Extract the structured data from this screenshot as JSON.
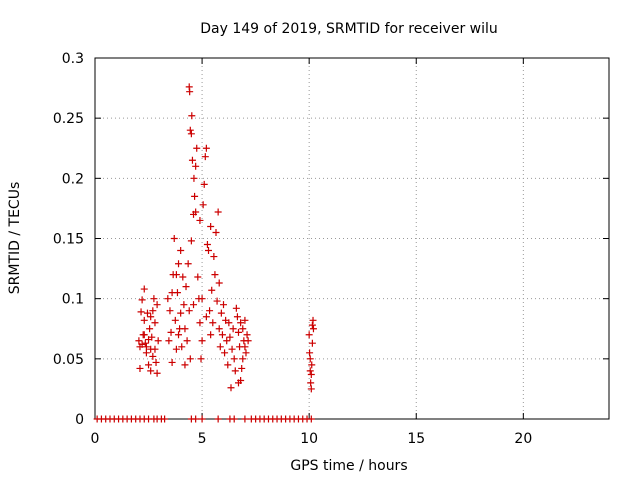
{
  "chart_data": {
    "type": "scatter",
    "title": "Day 149 of 2019, SRMTID for receiver wilu",
    "xlabel": "GPS time / hours",
    "ylabel": "SRMTID / TECUs",
    "xlim": [
      0,
      24
    ],
    "ylim": [
      0,
      0.3
    ],
    "xticks": [
      0,
      5,
      10,
      15,
      20
    ],
    "yticks": [
      0,
      0.05,
      0.1,
      0.15,
      0.2,
      0.25,
      0.3
    ],
    "grid": true,
    "legend": "none",
    "marker": "+",
    "marker_color": "#cc0000",
    "grid_color": "#999999",
    "series": [
      {
        "name": "SRMTID",
        "points": [
          [
            2.05,
            0.065
          ],
          [
            2.1,
            0.06
          ],
          [
            2.15,
            0.089
          ],
          [
            2.2,
            0.062
          ],
          [
            2.25,
            0.07
          ],
          [
            2.3,
            0.108
          ],
          [
            2.35,
            0.063
          ],
          [
            2.4,
            0.055
          ],
          [
            2.45,
            0.088
          ],
          [
            2.5,
            0.045
          ],
          [
            2.55,
            0.075
          ],
          [
            2.6,
            0.04
          ],
          [
            2.65,
            0.068
          ],
          [
            2.7,
            0.09
          ],
          [
            2.75,
            0.1
          ],
          [
            2.8,
            0.058
          ],
          [
            2.85,
            0.047
          ],
          [
            2.9,
            0.095
          ],
          [
            2.95,
            0.065
          ],
          [
            2.1,
            0.042
          ],
          [
            2.2,
            0.099
          ],
          [
            2.3,
            0.082
          ],
          [
            2.4,
            0.06
          ],
          [
            2.5,
            0.066
          ],
          [
            2.6,
            0.085
          ],
          [
            2.7,
            0.052
          ],
          [
            2.8,
            0.08
          ],
          [
            2.9,
            0.038
          ],
          [
            2.3,
            0.07
          ],
          [
            2.6,
            0.058
          ],
          [
            3.4,
            0.1
          ],
          [
            3.45,
            0.065
          ],
          [
            3.5,
            0.09
          ],
          [
            3.55,
            0.072
          ],
          [
            3.6,
            0.047
          ],
          [
            3.65,
            0.12
          ],
          [
            3.7,
            0.15
          ],
          [
            3.75,
            0.082
          ],
          [
            3.8,
            0.058
          ],
          [
            3.85,
            0.105
          ],
          [
            3.9,
            0.129
          ],
          [
            3.95,
            0.075
          ],
          [
            4.0,
            0.088
          ],
          [
            4.05,
            0.06
          ],
          [
            4.1,
            0.118
          ],
          [
            4.15,
            0.095
          ],
          [
            4.2,
            0.075
          ],
          [
            4.25,
            0.11
          ],
          [
            4.3,
            0.065
          ],
          [
            4.35,
            0.129
          ],
          [
            4.4,
            0.09
          ],
          [
            4.45,
            0.05
          ],
          [
            4.5,
            0.148
          ],
          [
            3.8,
            0.12
          ],
          [
            4.0,
            0.14
          ],
          [
            3.6,
            0.105
          ],
          [
            4.2,
            0.045
          ],
          [
            3.9,
            0.07
          ],
          [
            4.4,
            0.276
          ],
          [
            4.42,
            0.272
          ],
          [
            4.45,
            0.24
          ],
          [
            4.5,
            0.237
          ],
          [
            4.52,
            0.252
          ],
          [
            4.55,
            0.215
          ],
          [
            4.6,
            0.17
          ],
          [
            4.62,
            0.2
          ],
          [
            4.65,
            0.185
          ],
          [
            4.7,
            0.21
          ],
          [
            4.75,
            0.225
          ],
          [
            4.8,
            0.118
          ],
          [
            4.85,
            0.1
          ],
          [
            4.9,
            0.08
          ],
          [
            4.95,
            0.05
          ],
          [
            5.0,
            0.065
          ],
          [
            5.05,
            0.178
          ],
          [
            5.1,
            0.195
          ],
          [
            5.15,
            0.218
          ],
          [
            5.2,
            0.225
          ],
          [
            5.25,
            0.145
          ],
          [
            5.3,
            0.14
          ],
          [
            5.35,
            0.09
          ],
          [
            5.4,
            0.16
          ],
          [
            5.45,
            0.107
          ],
          [
            5.5,
            0.08
          ],
          [
            5.55,
            0.135
          ],
          [
            5.6,
            0.12
          ],
          [
            5.65,
            0.155
          ],
          [
            5.7,
            0.098
          ],
          [
            5.75,
            0.172
          ],
          [
            5.8,
            0.113
          ],
          [
            4.7,
            0.172
          ],
          [
            4.9,
            0.165
          ],
          [
            4.6,
            0.095
          ],
          [
            5.0,
            0.1
          ],
          [
            5.2,
            0.085
          ],
          [
            5.4,
            0.07
          ],
          [
            5.8,
            0.075
          ],
          [
            5.85,
            0.06
          ],
          [
            5.9,
            0.088
          ],
          [
            5.95,
            0.07
          ],
          [
            6.0,
            0.095
          ],
          [
            6.05,
            0.055
          ],
          [
            6.1,
            0.082
          ],
          [
            6.15,
            0.065
          ],
          [
            6.2,
            0.045
          ],
          [
            6.25,
            0.08
          ],
          [
            6.3,
            0.068
          ],
          [
            6.35,
            0.026
          ],
          [
            6.4,
            0.058
          ],
          [
            6.45,
            0.075
          ],
          [
            6.5,
            0.05
          ],
          [
            6.55,
            0.04
          ],
          [
            6.6,
            0.092
          ],
          [
            6.65,
            0.085
          ],
          [
            6.7,
            0.072
          ],
          [
            6.75,
            0.06
          ],
          [
            6.8,
            0.08
          ],
          [
            6.85,
            0.042
          ],
          [
            6.9,
            0.075
          ],
          [
            6.95,
            0.065
          ],
          [
            7.0,
            0.082
          ],
          [
            7.05,
            0.055
          ],
          [
            7.1,
            0.07
          ],
          [
            7.15,
            0.065
          ],
          [
            6.7,
            0.03
          ],
          [
            6.8,
            0.032
          ],
          [
            6.9,
            0.05
          ],
          [
            7.0,
            0.06
          ],
          [
            10.0,
            0.07
          ],
          [
            10.02,
            0.055
          ],
          [
            10.05,
            0.04
          ],
          [
            10.07,
            0.03
          ],
          [
            10.1,
            0.025
          ],
          [
            10.12,
            0.045
          ],
          [
            10.15,
            0.063
          ],
          [
            10.18,
            0.082
          ],
          [
            10.2,
            0.075
          ],
          [
            10.05,
            0.05
          ],
          [
            10.1,
            0.037
          ],
          [
            10.15,
            0.078
          ],
          [
            0.1,
            0
          ],
          [
            0.3,
            0
          ],
          [
            0.5,
            0
          ],
          [
            0.7,
            0
          ],
          [
            0.9,
            0
          ],
          [
            1.1,
            0
          ],
          [
            1.3,
            0
          ],
          [
            1.5,
            0
          ],
          [
            1.7,
            0
          ],
          [
            1.9,
            0
          ],
          [
            2.1,
            0
          ],
          [
            2.3,
            0
          ],
          [
            2.5,
            0
          ],
          [
            2.75,
            0
          ],
          [
            2.9,
            0
          ],
          [
            3.1,
            0
          ],
          [
            3.25,
            0
          ],
          [
            4.5,
            0
          ],
          [
            4.7,
            0
          ],
          [
            5.0,
            0
          ],
          [
            5.75,
            0
          ],
          [
            6.3,
            0
          ],
          [
            6.5,
            0
          ],
          [
            7.0,
            0
          ],
          [
            7.3,
            0
          ],
          [
            7.5,
            0
          ],
          [
            7.7,
            0
          ],
          [
            7.9,
            0
          ],
          [
            8.1,
            0
          ],
          [
            8.3,
            0
          ],
          [
            8.5,
            0
          ],
          [
            8.7,
            0
          ],
          [
            8.9,
            0
          ],
          [
            9.1,
            0
          ],
          [
            9.3,
            0
          ],
          [
            9.5,
            0
          ],
          [
            9.7,
            0
          ],
          [
            9.9,
            0
          ],
          [
            10.1,
            0
          ]
        ]
      }
    ]
  }
}
